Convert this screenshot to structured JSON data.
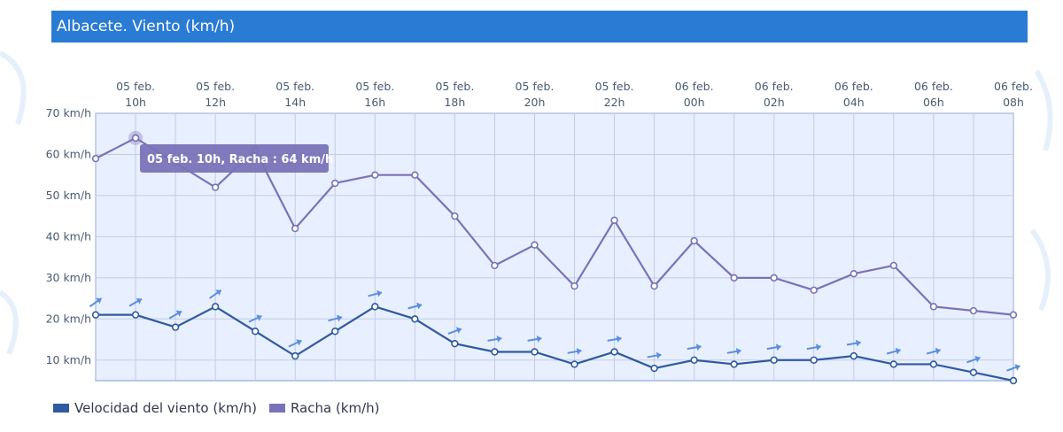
{
  "title": "Albacete. Viento (km/h)",
  "colors": {
    "title_bar": "#2a7bd4",
    "wind": "#2f5aa0",
    "gust": "#7a72b8",
    "plot_bg": "#e8efff",
    "arrow": "#5b8fde"
  },
  "legend": {
    "wind_label": "Velocidad del viento (km/h)",
    "gust_label": "Racha (km/h)"
  },
  "tooltip": {
    "text": "05 feb. 10h, Racha : 64 km/h",
    "series": "gust",
    "index": 1
  },
  "chart_data": {
    "type": "line",
    "x": [
      "05 feb. 09h",
      "05 feb. 10h",
      "05 feb. 11h",
      "05 feb. 12h",
      "05 feb. 13h",
      "05 feb. 14h",
      "05 feb. 15h",
      "05 feb. 16h",
      "05 feb. 17h",
      "05 feb. 18h",
      "05 feb. 19h",
      "05 feb. 20h",
      "05 feb. 21h",
      "05 feb. 22h",
      "05 feb. 23h",
      "06 feb. 00h",
      "06 feb. 01h",
      "06 feb. 02h",
      "06 feb. 03h",
      "06 feb. 04h",
      "06 feb. 05h",
      "06 feb. 06h",
      "06 feb. 07h",
      "06 feb. 08h"
    ],
    "x_tick_labels": [
      {
        "index": 1,
        "line1": "05 feb.",
        "line2": "10h"
      },
      {
        "index": 3,
        "line1": "05 feb.",
        "line2": "12h"
      },
      {
        "index": 5,
        "line1": "05 feb.",
        "line2": "14h"
      },
      {
        "index": 7,
        "line1": "05 feb.",
        "line2": "16h"
      },
      {
        "index": 9,
        "line1": "05 feb.",
        "line2": "18h"
      },
      {
        "index": 11,
        "line1": "05 feb.",
        "line2": "20h"
      },
      {
        "index": 13,
        "line1": "05 feb.",
        "line2": "22h"
      },
      {
        "index": 15,
        "line1": "06 feb.",
        "line2": "00h"
      },
      {
        "index": 17,
        "line1": "06 feb.",
        "line2": "02h"
      },
      {
        "index": 19,
        "line1": "06 feb.",
        "line2": "04h"
      },
      {
        "index": 21,
        "line1": "06 feb.",
        "line2": "06h"
      },
      {
        "index": 23,
        "line1": "06 feb.",
        "line2": "08h"
      }
    ],
    "y_ticks": [
      {
        "value": 10,
        "label": "10 km/h"
      },
      {
        "value": 20,
        "label": "20 km/h"
      },
      {
        "value": 30,
        "label": "30 km/h"
      },
      {
        "value": 40,
        "label": "40 km/h"
      },
      {
        "value": 50,
        "label": "50 km/h"
      },
      {
        "value": 60,
        "label": "60 km/h"
      },
      {
        "value": 70,
        "label": "70 km/h"
      }
    ],
    "ylim": [
      5,
      70
    ],
    "grid": true,
    "legend_position": "bottom-left",
    "series": [
      {
        "name": "Racha (km/h)",
        "key": "gust",
        "values": [
          59,
          64,
          58,
          52,
          61,
          42,
          53,
          55,
          55,
          45,
          33,
          38,
          28,
          44,
          28,
          39,
          30,
          30,
          27,
          31,
          33,
          23,
          22,
          21
        ]
      },
      {
        "name": "Velocidad del viento (km/h)",
        "key": "wind",
        "values": [
          21,
          21,
          18,
          23,
          17,
          11,
          17,
          23,
          20,
          14,
          12,
          12,
          9,
          12,
          8,
          10,
          9,
          10,
          10,
          11,
          9,
          9,
          7,
          5
        ],
        "direction_arrows_angle_deg": [
          -35,
          -30,
          -30,
          -35,
          -25,
          -25,
          -15,
          -15,
          -15,
          -20,
          -10,
          -10,
          -10,
          -10,
          -10,
          -10,
          -10,
          -10,
          -10,
          -10,
          -15,
          -15,
          -20,
          -20
        ]
      }
    ]
  }
}
